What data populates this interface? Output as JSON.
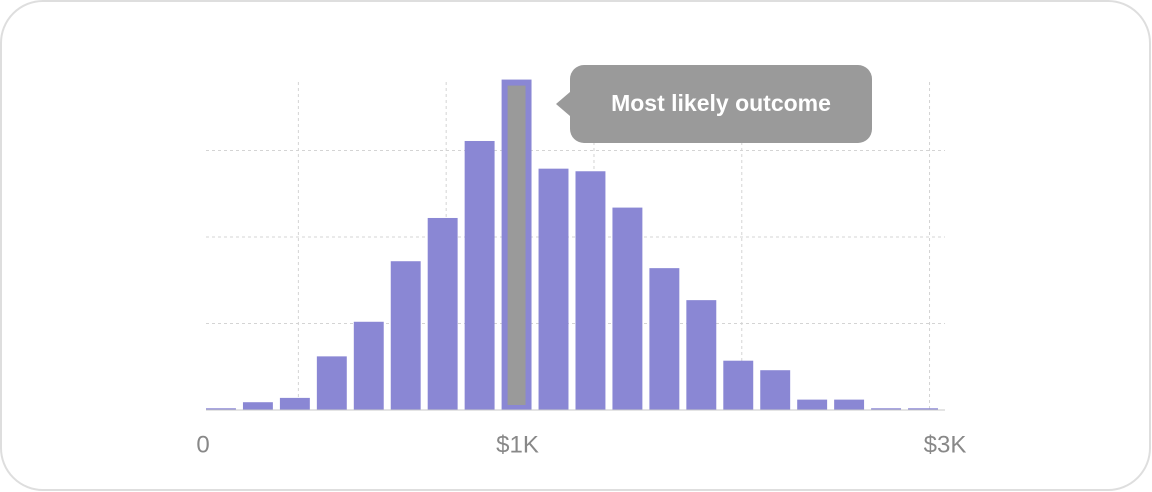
{
  "chart_data": {
    "type": "bar",
    "categories": [
      "0",
      null,
      null,
      null,
      null,
      null,
      null,
      null,
      "$1K",
      null,
      null,
      null,
      null,
      null,
      null,
      null,
      null,
      null,
      null,
      "$3K"
    ],
    "values": [
      0.02,
      0.09,
      0.14,
      0.62,
      1.02,
      1.72,
      2.22,
      3.11,
      3.82,
      2.79,
      2.76,
      2.34,
      1.64,
      1.27,
      0.57,
      0.46,
      0.12,
      0.12,
      0.02,
      0.02
    ],
    "color": "#8a87d4",
    "ylim": [
      0,
      4
    ],
    "yticks": [
      0,
      1,
      2,
      3
    ],
    "grid": true,
    "annotations": [
      {
        "text": "Most likely outcome",
        "category_index": 8,
        "color": "#9a9a9a"
      }
    ]
  }
}
